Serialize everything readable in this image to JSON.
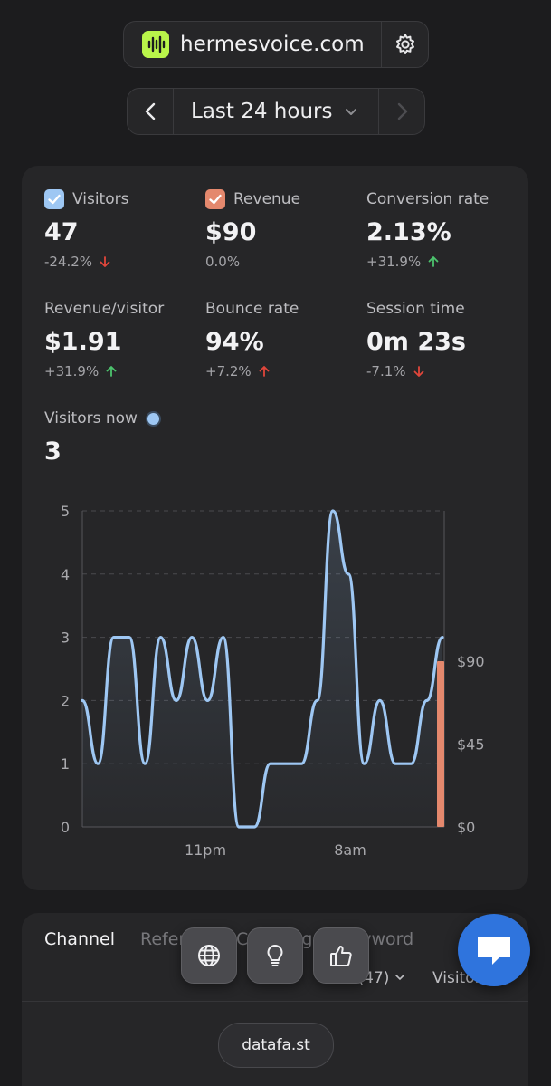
{
  "site": {
    "name": "hermesvoice.com"
  },
  "range": {
    "label": "Last 24 hours"
  },
  "metrics": {
    "visitors": {
      "label": "Visitors",
      "value": "47",
      "delta": "-24.2%",
      "trend": "down"
    },
    "revenue": {
      "label": "Revenue",
      "value": "$90",
      "delta": "0.0%",
      "trend": "flat"
    },
    "conversion": {
      "label": "Conversion rate",
      "value": "2.13%",
      "delta": "+31.9%",
      "trend": "up"
    },
    "revenue_per_visitor": {
      "label": "Revenue/visitor",
      "value": "$1.91",
      "delta": "+31.9%",
      "trend": "up"
    },
    "bounce": {
      "label": "Bounce rate",
      "value": "94%",
      "delta": "+7.2%",
      "trend": "up-bad"
    },
    "session": {
      "label": "Session time",
      "value": "0m 23s",
      "delta": "-7.1%",
      "trend": "down"
    }
  },
  "visitors_now": {
    "label": "Visitors now",
    "value": "3"
  },
  "colors": {
    "visitors_line": "#9ec7f3",
    "revenue_bar": "#e4886d",
    "up": "#4cc36d",
    "down": "#e0463b",
    "brand": "#b9f54a",
    "chat": "#2f74dd"
  },
  "chart_data": {
    "type": "line",
    "y_ticks": [
      "0",
      "1",
      "2",
      "3",
      "4",
      "5"
    ],
    "y2_ticks": [
      "$0",
      "$45",
      "$90"
    ],
    "x_ticks": [
      "11pm",
      "8am"
    ],
    "ylim": [
      0,
      5
    ],
    "y2lim": [
      0,
      90
    ],
    "grid": true,
    "series": [
      {
        "axis": "left",
        "type": "line",
        "values": [
          2,
          1,
          3,
          3,
          1,
          3,
          2,
          3,
          2,
          3,
          0,
          0,
          1,
          1,
          1,
          2,
          5,
          4,
          1,
          2,
          1,
          1,
          2,
          3
        ]
      },
      {
        "axis": "right",
        "type": "bar",
        "values": [
          90
        ]
      }
    ]
  },
  "tabs": {
    "channel": "Channel",
    "referrer": "Referrer",
    "campaign": "Campaign",
    "keyword": "Keyword",
    "filter": "All (47)",
    "sort": "Visitors"
  },
  "icons": {
    "globe": "globe-icon",
    "bulb": "lightbulb-icon",
    "thumb": "thumbs-up-icon",
    "chat": "chat-icon",
    "gear": "gear-icon"
  },
  "brand_badge": "datafa.st"
}
